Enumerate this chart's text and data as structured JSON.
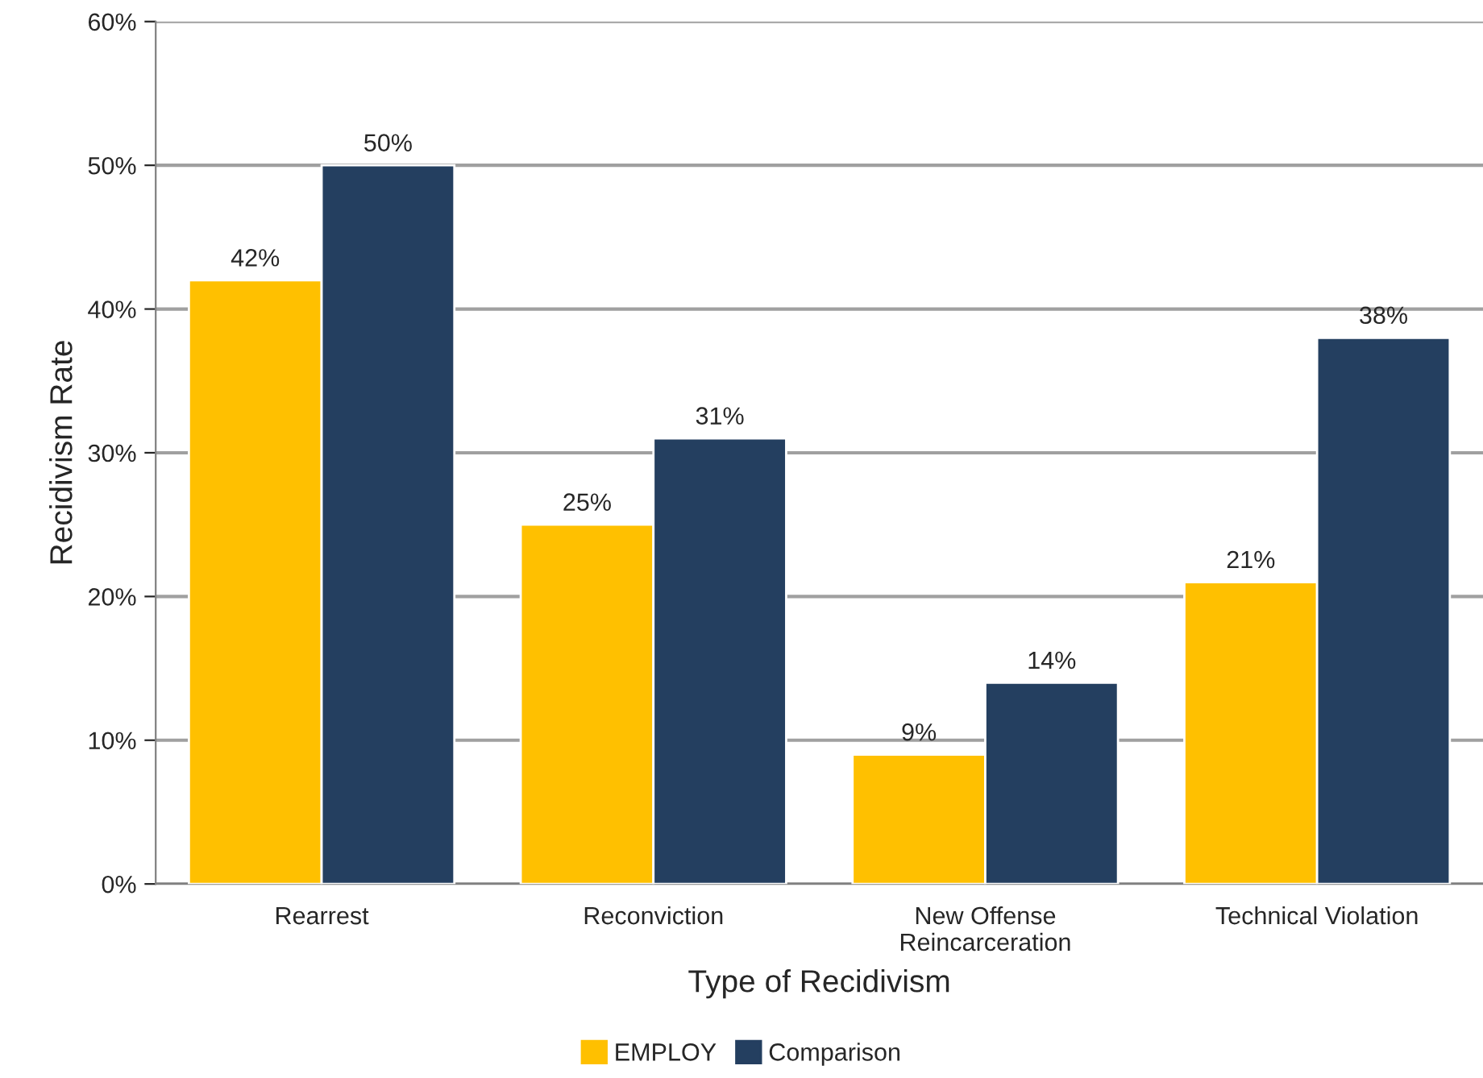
{
  "chart_data": {
    "type": "bar",
    "xlabel": "Type of Recidivism",
    "ylabel": "Recidivism Rate",
    "categories": [
      "Rearrest",
      "Reconviction",
      "New Offense\nReincarceration",
      "Technical Violation"
    ],
    "series": [
      {
        "name": "EMPLOY",
        "color": "#ffc000",
        "values": [
          42,
          25,
          9,
          21
        ],
        "value_labels": [
          "42%",
          "25%",
          "9%",
          "21%"
        ]
      },
      {
        "name": "Comparison",
        "color": "#243f60",
        "values": [
          50,
          31,
          14,
          38
        ],
        "value_labels": [
          "50%",
          "31%",
          "14%",
          "38%"
        ]
      }
    ],
    "ylim": [
      0,
      60
    ],
    "yticks": [
      {
        "value": 0,
        "label": "0%"
      },
      {
        "value": 10,
        "label": "10%"
      },
      {
        "value": 20,
        "label": "20%"
      },
      {
        "value": 30,
        "label": "30%"
      },
      {
        "value": 40,
        "label": "40%"
      },
      {
        "value": 50,
        "label": "50%"
      },
      {
        "value": 60,
        "label": "60%"
      }
    ],
    "grid": "y",
    "legend": "bottom"
  }
}
